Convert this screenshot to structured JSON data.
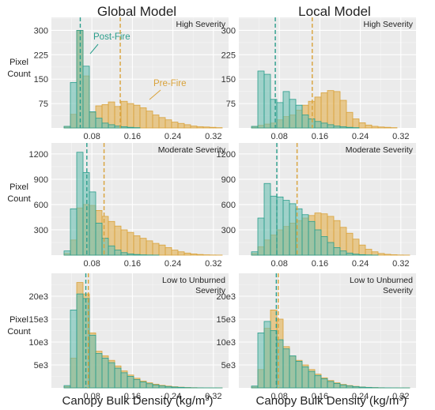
{
  "column_titles": [
    "Global Model",
    "Local Model"
  ],
  "row_y_label": [
    "Pixel",
    "Count"
  ],
  "xlabel": "Canopy Bulk Density (kg/m",
  "xlabel_sup": "3",
  "xlabel_end": ")",
  "colors": {
    "pre_fire": "#e3b866",
    "pre_fire_edge": "#d9a23a",
    "post_fire": "#6dbfb2",
    "post_fire_edge": "#2a9e8c"
  },
  "annotations": {
    "post_fire": "Post-Fire",
    "pre_fire": "Pre-Fire"
  },
  "chart_data": [
    {
      "type": "bar",
      "model": "Global Model",
      "panel_label": [
        "High Severity"
      ],
      "xlim": [
        0,
        0.35
      ],
      "ylim": [
        0,
        340
      ],
      "xticks": [
        0.08,
        0.16,
        0.24,
        0.32
      ],
      "xtick_labels": [
        "0.08",
        "0.16",
        "0.24",
        "0.32"
      ],
      "yticks": [
        75,
        150,
        225,
        300
      ],
      "ytick_labels": [
        "75",
        "150",
        "225",
        "300"
      ],
      "bin_start": 0,
      "bin_width": 0.0125,
      "series": [
        {
          "values": [
            0,
            0,
            5,
            42,
            300,
            160,
            48,
            68,
            72,
            80,
            66,
            82,
            75,
            70,
            62,
            52,
            40,
            32,
            25,
            18,
            14,
            10,
            6,
            4,
            3,
            2,
            1,
            0
          ]
        },
        {
          "values": [
            0,
            0,
            5,
            140,
            300,
            190,
            50,
            30,
            15,
            10,
            6,
            4,
            2,
            1,
            0,
            0,
            0,
            0,
            0,
            0,
            0,
            0,
            0,
            0,
            0,
            0,
            0,
            0
          ]
        }
      ],
      "vlines": [
        0.057,
        0.136
      ]
    },
    {
      "type": "bar",
      "model": "Local Model",
      "panel_label": [
        "High Severity"
      ],
      "xlim": [
        0,
        0.35
      ],
      "ylim": [
        0,
        340
      ],
      "xticks": [
        0.08,
        0.16,
        0.24,
        0.32
      ],
      "xtick_labels": [
        "0.08",
        "0.16",
        "0.24",
        "0.32"
      ],
      "yticks": [
        75,
        150,
        225,
        300
      ],
      "ytick_labels": [
        "75",
        "150",
        "225",
        "300"
      ],
      "bin_start": 0,
      "bin_width": 0.0125,
      "series": [
        {
          "values": [
            0,
            0,
            3,
            8,
            12,
            15,
            25,
            35,
            40,
            55,
            70,
            82,
            95,
            108,
            115,
            112,
            85,
            48,
            28,
            16,
            9,
            5,
            3,
            2,
            1,
            0,
            0,
            0
          ]
        },
        {
          "values": [
            0,
            0,
            5,
            175,
            165,
            88,
            78,
            112,
            88,
            70,
            40,
            28,
            20,
            15,
            10,
            6,
            4,
            2,
            1,
            0,
            0,
            0,
            0,
            0,
            0,
            0,
            0,
            0
          ]
        }
      ],
      "vlines": [
        0.072,
        0.145
      ]
    },
    {
      "type": "bar",
      "model": "Global Model",
      "panel_label": [
        "Moderate Severity"
      ],
      "xlim": [
        0,
        0.35
      ],
      "ylim": [
        0,
        1330
      ],
      "xticks": [
        0.08,
        0.16,
        0.24,
        0.32
      ],
      "xtick_labels": [
        "0.08",
        "0.16",
        "0.24",
        "0.32"
      ],
      "yticks": [
        300,
        600,
        900,
        1200
      ],
      "ytick_labels": [
        "300",
        "600",
        "900",
        "1200"
      ],
      "bin_start": 0,
      "bin_width": 0.0125,
      "series": [
        {
          "values": [
            0,
            0,
            20,
            180,
            560,
            600,
            590,
            530,
            460,
            400,
            345,
            300,
            270,
            230,
            200,
            170,
            140,
            120,
            90,
            60,
            40,
            25,
            15,
            8,
            4,
            2,
            1,
            0
          ]
        },
        {
          "values": [
            0,
            0,
            50,
            550,
            1220,
            980,
            750,
            380,
            200,
            110,
            60,
            30,
            15,
            8,
            4,
            2,
            1,
            0,
            0,
            0,
            0,
            0,
            0,
            0,
            0,
            0,
            0,
            0
          ]
        }
      ],
      "vlines": [
        0.07,
        0.104
      ]
    },
    {
      "type": "bar",
      "model": "Local Model",
      "panel_label": [
        "Moderate Severity"
      ],
      "xlim": [
        0,
        0.35
      ],
      "ylim": [
        0,
        1330
      ],
      "xticks": [
        0.08,
        0.16,
        0.24,
        0.32
      ],
      "xtick_labels": [
        "0.08",
        "0.16",
        "0.24",
        "0.32"
      ],
      "yticks": [
        300,
        600,
        900,
        1200
      ],
      "ytick_labels": [
        "300",
        "600",
        "900",
        "1200"
      ],
      "bin_start": 0,
      "bin_width": 0.0125,
      "series": [
        {
          "values": [
            0,
            0,
            20,
            100,
            180,
            240,
            300,
            340,
            380,
            410,
            440,
            470,
            500,
            490,
            460,
            410,
            330,
            260,
            190,
            120,
            70,
            40,
            20,
            10,
            5,
            2,
            1,
            0
          ]
        },
        {
          "values": [
            0,
            0,
            40,
            440,
            850,
            700,
            690,
            650,
            610,
            550,
            480,
            400,
            300,
            220,
            150,
            90,
            50,
            25,
            12,
            6,
            3,
            1,
            0,
            0,
            0,
            0,
            0,
            0
          ]
        }
      ],
      "vlines": [
        0.075,
        0.115
      ]
    },
    {
      "type": "bar",
      "model": "Global Model",
      "panel_label": [
        "Low to Unburned",
        "Severity"
      ],
      "xlim": [
        0,
        0.35
      ],
      "ylim": [
        0,
        25000
      ],
      "xticks": [
        0.08,
        0.16,
        0.24,
        0.32
      ],
      "xtick_labels": [
        "0.08",
        "0.16",
        "0.24",
        "0.32"
      ],
      "yticks": [
        5000,
        10000,
        15000,
        20000
      ],
      "ytick_labels": [
        "5e3",
        "10e3",
        "15e3",
        "20e3"
      ],
      "bin_start": 0,
      "bin_width": 0.0125,
      "series": [
        {
          "values": [
            0,
            0,
            300,
            6500,
            23000,
            20500,
            12000,
            8000,
            7000,
            6000,
            4800,
            3700,
            2800,
            2100,
            1500,
            1100,
            800,
            550,
            380,
            250,
            150,
            90,
            50,
            25,
            12,
            5,
            2,
            0
          ]
        },
        {
          "values": [
            0,
            0,
            500,
            17000,
            20500,
            19500,
            11500,
            7500,
            6500,
            5500,
            4300,
            3300,
            2500,
            1800,
            1300,
            900,
            650,
            430,
            290,
            180,
            110,
            60,
            30,
            15,
            7,
            3,
            1,
            0
          ]
        }
      ],
      "vlines": [
        0.068,
        0.073
      ]
    },
    {
      "type": "bar",
      "model": "Local Model",
      "panel_label": [
        "Low to Unburned",
        "Severity"
      ],
      "xlim": [
        0,
        0.35
      ],
      "ylim": [
        0,
        25000
      ],
      "xticks": [
        0.08,
        0.16,
        0.24,
        0.32
      ],
      "xtick_labels": [
        "0.08",
        "0.16",
        "0.24",
        "0.32"
      ],
      "yticks": [
        5000,
        10000,
        15000,
        20000
      ],
      "ytick_labels": [
        "5e3",
        "10e3",
        "15e3",
        "20e3"
      ],
      "bin_start": 0,
      "bin_width": 0.0125,
      "series": [
        {
          "values": [
            0,
            0,
            200,
            4000,
            13000,
            17000,
            15000,
            9000,
            7000,
            6000,
            5000,
            4000,
            3000,
            2200,
            1600,
            1100,
            750,
            500,
            330,
            200,
            120,
            70,
            35,
            15,
            7,
            3,
            1,
            0
          ]
        },
        {
          "values": [
            0,
            0,
            400,
            12000,
            14500,
            12500,
            10500,
            8500,
            7000,
            5800,
            4600,
            3600,
            2700,
            2000,
            1400,
            950,
            650,
            420,
            270,
            170,
            100,
            55,
            25,
            12,
            5,
            2,
            1,
            0
          ]
        }
      ],
      "vlines": [
        0.074,
        0.078
      ]
    }
  ]
}
